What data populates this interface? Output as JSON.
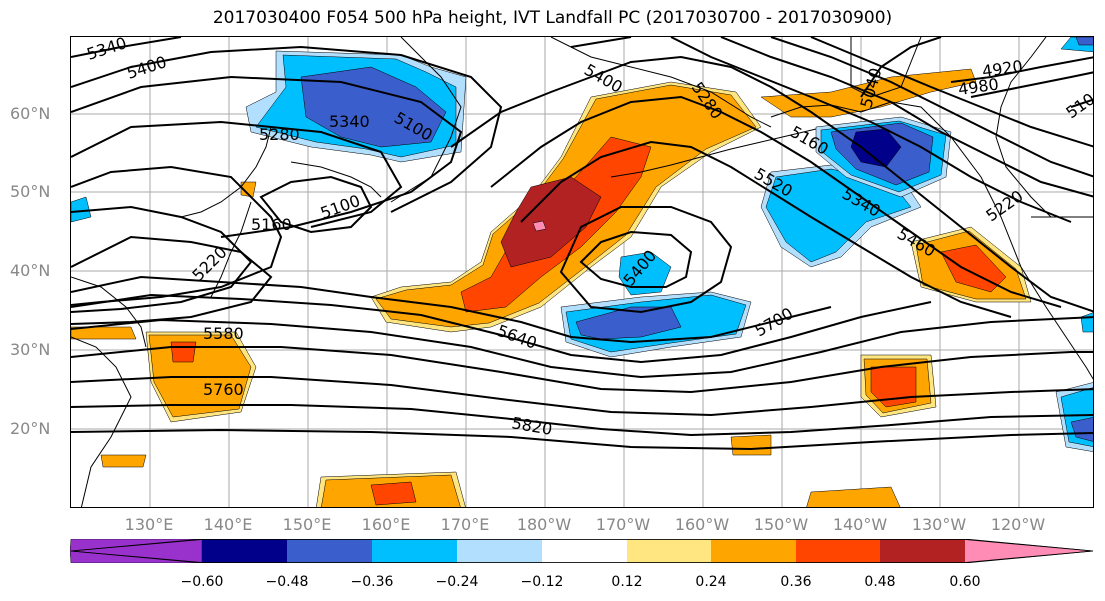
{
  "title": "2017030400 F054 500 hPa height, IVT Landfall PC (2017030700 - 2017030900)",
  "lat_labels": [
    "60°N",
    "50°N",
    "40°N",
    "30°N",
    "20°N"
  ],
  "lon_labels": [
    "130°E",
    "140°E",
    "150°E",
    "160°E",
    "170°E",
    "180°W",
    "170°W",
    "160°W",
    "150°W",
    "140°W",
    "130°W",
    "120°W"
  ],
  "contour_labels": [
    "5340",
    "5400",
    "5280",
    "5340",
    "5100",
    "5160",
    "5220",
    "5100",
    "5580",
    "5760",
    "5640",
    "5820",
    "5400",
    "5520",
    "5400",
    "5280",
    "5160",
    "5340",
    "5460",
    "5700",
    "5040",
    "4980",
    "4920",
    "5220",
    "510"
  ],
  "colorbar": {
    "ticks": [
      "−0.60",
      "−0.48",
      "−0.36",
      "−0.24",
      "−0.12",
      "0.12",
      "0.24",
      "0.36",
      "0.48",
      "0.60"
    ],
    "colors": [
      "#9932CC",
      "#00008B",
      "#3A5FCD",
      "#00BFFF",
      "#B2DFFE",
      "#FFFFFF",
      "#FFE680",
      "#FFA500",
      "#FF4500",
      "#B22222",
      "#FF8CB4"
    ]
  }
}
